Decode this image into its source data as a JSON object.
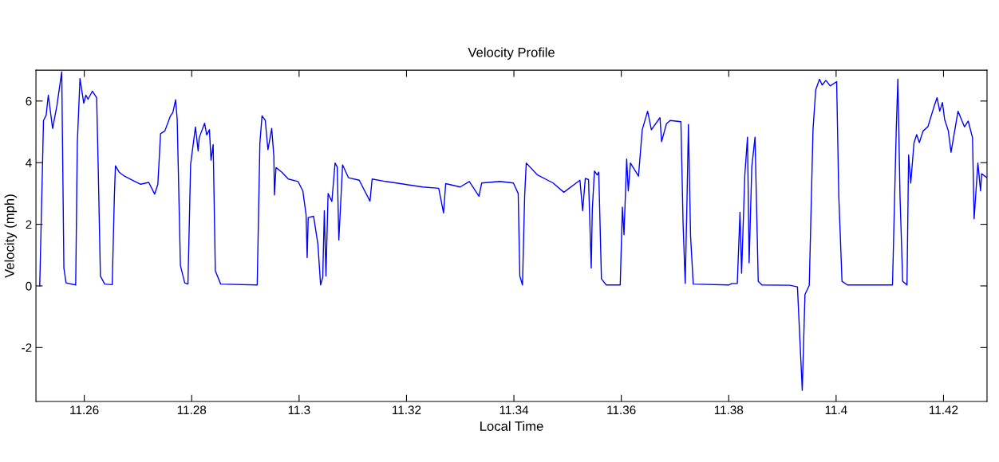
{
  "chart_data": {
    "type": "line",
    "title": "Velocity Profile",
    "xlabel": "Local Time",
    "ylabel": "Velocity (mph)",
    "xlim": [
      11.251,
      11.4281
    ],
    "ylim": [
      -3.75,
      7
    ],
    "xticks": [
      11.26,
      11.28,
      11.3,
      11.32,
      11.34,
      11.36,
      11.38,
      11.4,
      11.42
    ],
    "yticks": [
      -2,
      0,
      2,
      4,
      6
    ],
    "grid": false,
    "marker": "none",
    "line_style": "solid",
    "series": [
      {
        "color": "#0000ff",
        "x": [
          11.2517,
          11.2522,
          11.2524,
          11.2529,
          11.2533,
          11.2541,
          11.2549,
          11.2558,
          11.2562,
          11.2566,
          11.2584,
          11.2587,
          11.2592,
          11.2599,
          11.2603,
          11.2607,
          11.2615,
          11.2623,
          11.2626,
          11.263,
          11.2638,
          11.2652,
          11.2656,
          11.2658,
          11.2665,
          11.2675,
          11.269,
          11.2705,
          11.272,
          11.2731,
          11.2737,
          11.2742,
          11.275,
          11.276,
          11.2765,
          11.277,
          11.2773,
          11.2779,
          11.2787,
          11.2793,
          11.2798,
          11.2807,
          11.2812,
          11.2814,
          11.2824,
          11.2828,
          11.2833,
          11.2836,
          11.284,
          11.2844,
          11.2854,
          11.2922,
          11.2927,
          11.2931,
          11.2937,
          11.2942,
          11.2949,
          11.2953,
          11.2954,
          11.2957,
          11.2968,
          11.298,
          11.2998,
          11.3007,
          11.3013,
          11.3015,
          11.3017,
          11.3027,
          11.3035,
          11.304,
          11.3044,
          11.3047,
          11.305,
          11.3054,
          11.3061,
          11.3067,
          11.3071,
          11.3074,
          11.3081,
          11.3092,
          11.3112,
          11.3132,
          11.3136,
          11.3161,
          11.3196,
          11.323,
          11.326,
          11.3269,
          11.3273,
          11.33,
          11.3317,
          11.3335,
          11.334,
          11.3374,
          11.3399,
          11.3408,
          11.3411,
          11.3416,
          11.342,
          11.3423,
          11.3444,
          11.3473,
          11.3493,
          11.3523,
          11.3528,
          11.3533,
          11.3539,
          11.3544,
          11.3546,
          11.355,
          11.3555,
          11.3558,
          11.3563,
          11.3572,
          11.3598,
          11.3602,
          11.3605,
          11.361,
          11.3613,
          11.3617,
          11.3632,
          11.3639,
          11.3649,
          11.3656,
          11.3672,
          11.3675,
          11.3684,
          11.3691,
          11.3711,
          11.3715,
          11.3719,
          11.3722,
          11.3725,
          11.3729,
          11.3734,
          11.38,
          11.3806,
          11.3816,
          11.3821,
          11.3824,
          11.383,
          11.3835,
          11.3838,
          11.3843,
          11.3849,
          11.3855,
          11.3862,
          11.3914,
          11.3928,
          11.3937,
          11.3942,
          11.395,
          11.3957,
          11.3962,
          11.3969,
          11.3974,
          11.3981,
          11.3989,
          11.4001,
          11.4005,
          11.4011,
          11.4021,
          11.4105,
          11.4112,
          11.4115,
          11.4119,
          11.4124,
          11.4132,
          11.4135,
          11.4139,
          11.4145,
          11.415,
          11.4155,
          11.4162,
          11.4171,
          11.4182,
          11.4188,
          11.4193,
          11.4198,
          11.4202,
          11.4209,
          11.4214,
          11.4227,
          11.4239,
          11.4246,
          11.4254,
          11.4257,
          11.4264,
          11.4269,
          11.4271,
          11.4281
        ],
        "values": [
          0,
          3.77,
          5.37,
          5.54,
          6.19,
          5.11,
          5.85,
          6.95,
          0.58,
          0.1,
          0.03,
          4.64,
          6.73,
          5.93,
          6.19,
          6.06,
          6.32,
          6.11,
          3.77,
          0.32,
          0.06,
          0.04,
          2.91,
          3.9,
          3.69,
          3.56,
          3.43,
          3.3,
          3.36,
          2.98,
          3.3,
          4.94,
          5.03,
          5.5,
          5.63,
          6.04,
          5.41,
          0.66,
          0.1,
          0.06,
          3.95,
          5.16,
          4.38,
          4.81,
          5.28,
          4.9,
          5.07,
          4.08,
          4.59,
          0.49,
          0.06,
          0.03,
          4.64,
          5.52,
          5.37,
          4.42,
          5.11,
          4.21,
          2.95,
          3.84,
          3.69,
          3.47,
          3.39,
          3.08,
          2.31,
          0.92,
          2.22,
          2.26,
          1.36,
          0.03,
          0.28,
          2.44,
          0.32,
          3.0,
          2.74,
          3.99,
          3.86,
          1.49,
          3.93,
          3.51,
          3.43,
          2.75,
          3.47,
          3.39,
          3.3,
          3.21,
          3.17,
          2.37,
          3.32,
          3.21,
          3.39,
          2.91,
          3.34,
          3.39,
          3.34,
          3.0,
          0.32,
          0.03,
          2.91,
          3.99,
          3.6,
          3.34,
          3.04,
          3.43,
          2.44,
          3.49,
          3.45,
          0.58,
          2.48,
          3.73,
          3.6,
          3.69,
          0.23,
          0.03,
          0.03,
          2.56,
          1.66,
          4.12,
          3.08,
          3.99,
          3.56,
          5.07,
          5.67,
          5.07,
          5.46,
          4.68,
          5.26,
          5.37,
          5.33,
          2.05,
          0.08,
          2.48,
          5.24,
          1.61,
          0.06,
          0.03,
          0.08,
          0.08,
          2.39,
          0.41,
          3.6,
          4.83,
          0.75,
          3.86,
          4.83,
          0.15,
          0.03,
          0.02,
          -0.03,
          -3.39,
          -0.28,
          0.02,
          5.07,
          6.36,
          6.71,
          6.52,
          6.67,
          6.49,
          6.63,
          2.91,
          0.15,
          0.03,
          0.03,
          5.07,
          6.71,
          2.91,
          0.15,
          0.03,
          4.25,
          3.34,
          4.64,
          4.91,
          4.65,
          5.03,
          5.17,
          5.8,
          6.11,
          5.67,
          5.95,
          5.41,
          5.03,
          4.34,
          5.67,
          5.16,
          5.35,
          4.81,
          2.18,
          3.99,
          3.08,
          3.64,
          3.51
        ]
      }
    ]
  }
}
